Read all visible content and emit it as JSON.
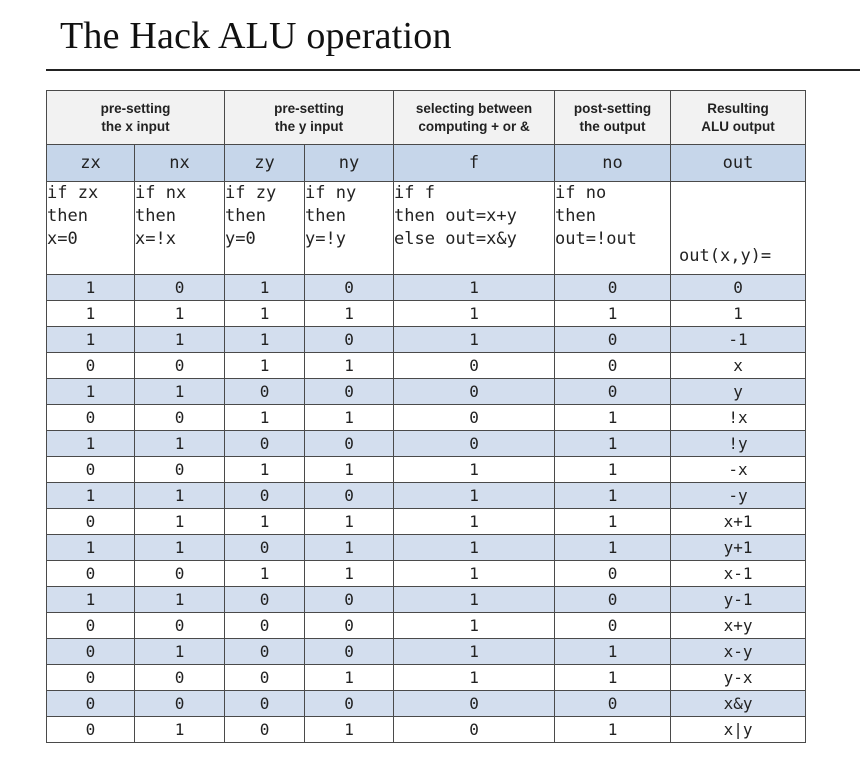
{
  "title": "The Hack ALU operation",
  "groups": [
    {
      "line1": "pre-setting",
      "line2": "the x input"
    },
    {
      "line1": "pre-setting",
      "line2": "the y input"
    },
    {
      "line1": "selecting between",
      "line2": "computing + or &"
    },
    {
      "line1": "post-setting",
      "line2": "the output"
    },
    {
      "line1": "Resulting",
      "line2": "ALU output"
    }
  ],
  "columns": [
    "zx",
    "nx",
    "zy",
    "ny",
    "f",
    "no",
    "out"
  ],
  "descriptions": {
    "zx": [
      "if zx",
      "then",
      "x=0"
    ],
    "nx": [
      "if nx",
      "then",
      "x=!x"
    ],
    "zy": [
      "if zy",
      "then",
      "y=0"
    ],
    "ny": [
      "if ny",
      "then",
      "y=!y"
    ],
    "f": [
      "if f",
      "then out=x+y",
      "else out=x&y"
    ],
    "no": [
      "if no",
      "then",
      "out=!out"
    ],
    "out": "out(x,y)="
  },
  "rows": [
    [
      "1",
      "0",
      "1",
      "0",
      "1",
      "0",
      "0"
    ],
    [
      "1",
      "1",
      "1",
      "1",
      "1",
      "1",
      "1"
    ],
    [
      "1",
      "1",
      "1",
      "0",
      "1",
      "0",
      "-1"
    ],
    [
      "0",
      "0",
      "1",
      "1",
      "0",
      "0",
      "x"
    ],
    [
      "1",
      "1",
      "0",
      "0",
      "0",
      "0",
      "y"
    ],
    [
      "0",
      "0",
      "1",
      "1",
      "0",
      "1",
      "!x"
    ],
    [
      "1",
      "1",
      "0",
      "0",
      "0",
      "1",
      "!y"
    ],
    [
      "0",
      "0",
      "1",
      "1",
      "1",
      "1",
      "-x"
    ],
    [
      "1",
      "1",
      "0",
      "0",
      "1",
      "1",
      "-y"
    ],
    [
      "0",
      "1",
      "1",
      "1",
      "1",
      "1",
      "x+1"
    ],
    [
      "1",
      "1",
      "0",
      "1",
      "1",
      "1",
      "y+1"
    ],
    [
      "0",
      "0",
      "1",
      "1",
      "1",
      "0",
      "x-1"
    ],
    [
      "1",
      "1",
      "0",
      "0",
      "1",
      "0",
      "y-1"
    ],
    [
      "0",
      "0",
      "0",
      "0",
      "1",
      "0",
      "x+y"
    ],
    [
      "0",
      "1",
      "0",
      "0",
      "1",
      "1",
      "x-y"
    ],
    [
      "0",
      "0",
      "0",
      "1",
      "1",
      "1",
      "y-x"
    ],
    [
      "0",
      "0",
      "0",
      "0",
      "0",
      "0",
      "x&y"
    ],
    [
      "0",
      "1",
      "0",
      "1",
      "0",
      "1",
      "x|y"
    ]
  ]
}
